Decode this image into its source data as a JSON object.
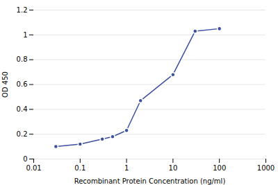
{
  "chart_data": {
    "type": "line",
    "x": [
      0.03,
      0.1,
      0.3,
      0.5,
      1.0,
      2.0,
      10.0,
      30.0,
      100.0
    ],
    "values": [
      0.1,
      0.12,
      0.16,
      0.18,
      0.23,
      0.47,
      0.68,
      1.03,
      1.05
    ],
    "color": "#3d4fa0",
    "marker": "circle",
    "xlabel": "Recombinant Protein Concentration (ng/ml)",
    "ylabel": "OD 450",
    "log": "x",
    "xlim": [
      0.01,
      1000
    ],
    "xticks": [
      0.01,
      0.1,
      1,
      10,
      100,
      1000
    ],
    "ylim": [
      0,
      1.2
    ],
    "yticks": [
      0,
      0.2,
      0.4,
      0.6,
      0.8,
      1,
      1.2
    ],
    "grid": "y"
  }
}
